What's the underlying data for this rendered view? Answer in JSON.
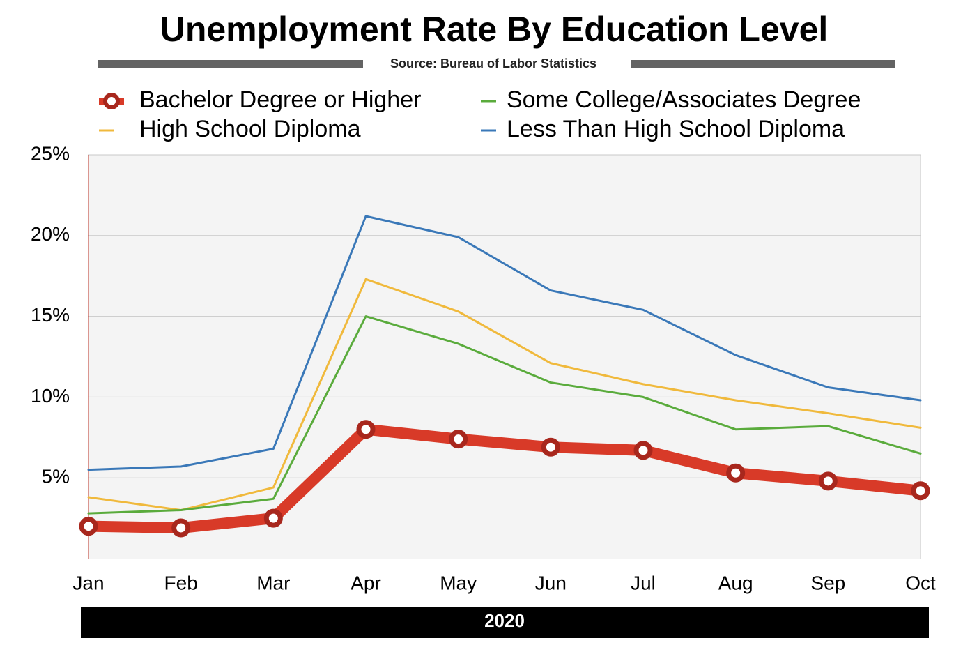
{
  "chart_data": {
    "type": "line",
    "title": "Unemployment Rate By Education Level",
    "subtitle": "Source: Bureau of Labor Statistics",
    "xlabel": "2020",
    "categories": [
      "Jan",
      "Feb",
      "Mar",
      "Apr",
      "May",
      "Jun",
      "Jul",
      "Aug",
      "Sep",
      "Oct"
    ],
    "series": [
      {
        "name": "Bachelor Degree or Higher",
        "color": "#d83a28",
        "markers": true,
        "values": [
          2.0,
          1.9,
          2.5,
          8.0,
          7.4,
          6.9,
          6.7,
          5.3,
          4.8,
          4.2
        ]
      },
      {
        "name": "Some College/Associates Degree",
        "color": "#5aab3c",
        "values": [
          2.8,
          3.0,
          3.7,
          15.0,
          13.3,
          10.9,
          10.0,
          8.0,
          8.2,
          6.5
        ]
      },
      {
        "name": "High School Diploma",
        "color": "#f0b93c",
        "values": [
          3.8,
          3.0,
          4.4,
          17.3,
          15.3,
          12.1,
          10.8,
          9.8,
          9.0,
          8.1
        ]
      },
      {
        "name": "Less Than High School Diploma",
        "color": "#3a78b8",
        "values": [
          5.5,
          5.7,
          6.8,
          21.2,
          19.9,
          16.6,
          15.4,
          12.6,
          10.6,
          9.8
        ]
      }
    ],
    "ylim": [
      0,
      25
    ],
    "yticks": [
      {
        "value": 5,
        "label": "5%"
      },
      {
        "value": 10,
        "label": "10%"
      },
      {
        "value": 15,
        "label": "15%"
      },
      {
        "value": 20,
        "label": "20%"
      },
      {
        "value": 25,
        "label": "25%"
      }
    ],
    "grid": true
  }
}
